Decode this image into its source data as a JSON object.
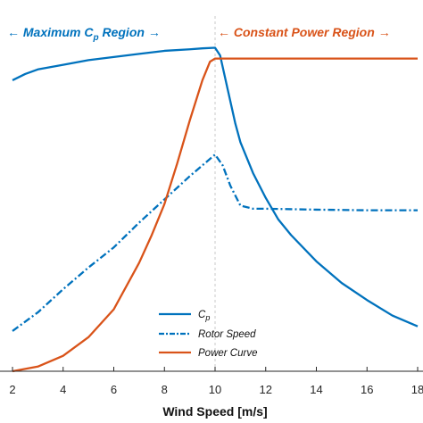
{
  "chart_data": {
    "type": "line",
    "xlabel": "Wind Speed [m/s]",
    "ylabel": "",
    "xlim": [
      2,
      18
    ],
    "ylim": [
      0,
      1.13
    ],
    "x_ticks": [
      "2",
      "4",
      "6",
      "8",
      "10",
      "12",
      "14",
      "16",
      "18"
    ],
    "regions": [
      {
        "label": "Maximum",
        "subscript_label": "C",
        "subscript": "p",
        "label_suffix": "Region",
        "arrow_left": "←",
        "arrow_right": "→",
        "color": "#0072BD",
        "x_range": [
          2,
          10
        ]
      },
      {
        "label": "Constant Power Region",
        "arrow_left": "←",
        "arrow_right": "→",
        "color": "#D95319",
        "x_range": [
          10,
          18
        ]
      }
    ],
    "boundary_x": 10,
    "series": [
      {
        "name": "C",
        "name_subscript": "p",
        "color": "#0072BD",
        "style": "solid",
        "x": [
          2,
          2.5,
          3,
          4,
          5,
          6,
          7,
          8,
          9,
          9.5,
          10,
          10.2,
          10.5,
          10.8,
          11,
          11.5,
          12,
          12.5,
          13,
          14,
          15,
          16,
          17,
          18
        ],
        "y": [
          0.94,
          0.96,
          0.975,
          0.99,
          1.005,
          1.015,
          1.025,
          1.035,
          1.04,
          1.043,
          1.045,
          1.02,
          0.91,
          0.8,
          0.74,
          0.64,
          0.56,
          0.49,
          0.44,
          0.355,
          0.285,
          0.23,
          0.18,
          0.145
        ]
      },
      {
        "name": "Rotor Speed",
        "color": "#0072BD",
        "style": "dashdot",
        "x": [
          2,
          3,
          4,
          5,
          6,
          7,
          8,
          9,
          9.5,
          10,
          10.3,
          10.6,
          11,
          11.5,
          12,
          14,
          16,
          18
        ],
        "y": [
          0.13,
          0.19,
          0.265,
          0.335,
          0.4,
          0.48,
          0.555,
          0.63,
          0.665,
          0.7,
          0.665,
          0.6,
          0.535,
          0.525,
          0.525,
          0.522,
          0.52,
          0.52
        ]
      },
      {
        "name": "Power Curve",
        "color": "#D95319",
        "style": "solid",
        "x": [
          2,
          3,
          4,
          5,
          6,
          7,
          7.5,
          8,
          8.5,
          9,
          9.5,
          9.8,
          10,
          12,
          14,
          16,
          18
        ],
        "y": [
          0.0,
          0.015,
          0.05,
          0.11,
          0.2,
          0.35,
          0.44,
          0.54,
          0.67,
          0.81,
          0.94,
          1.0,
          1.01,
          1.01,
          1.01,
          1.01,
          1.01
        ]
      }
    ],
    "legend_position": "bottom-right"
  }
}
